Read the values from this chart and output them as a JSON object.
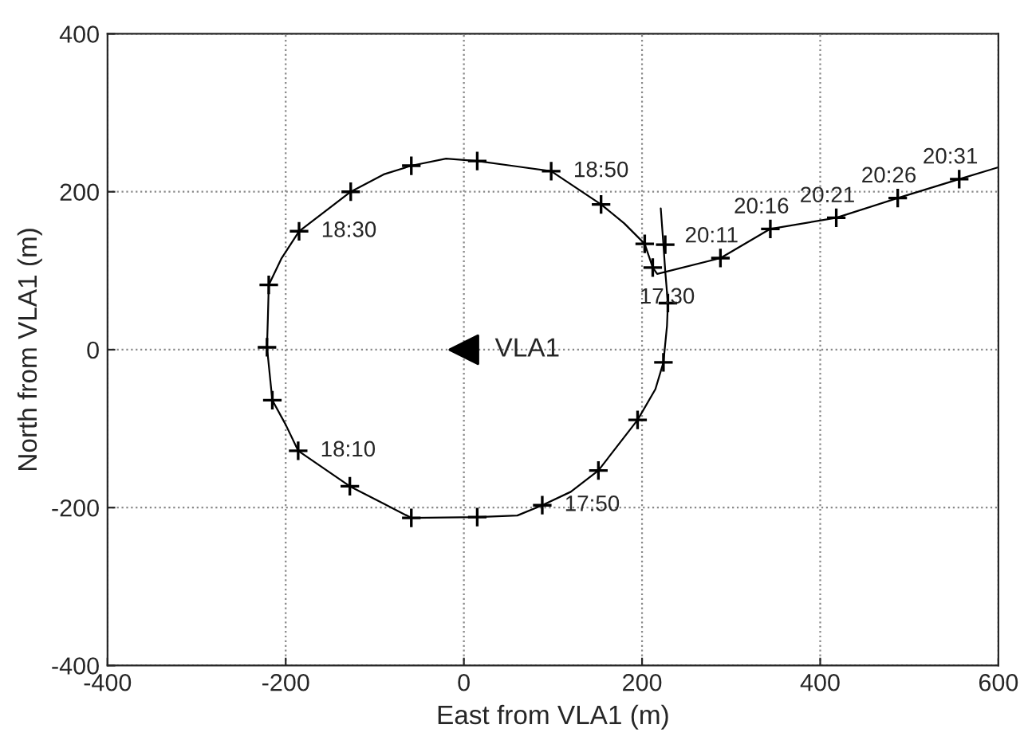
{
  "chart_data": {
    "type": "line",
    "xlabel": "East from VLA1 (m)",
    "ylabel": "North from VLA1 (m)",
    "xlim": [
      -400,
      600
    ],
    "ylim": [
      -400,
      400
    ],
    "xticks": [
      -400,
      -200,
      0,
      200,
      400,
      600
    ],
    "yticks": [
      -400,
      -200,
      0,
      200,
      400
    ],
    "grid": true,
    "series": [
      {
        "color": "#000000",
        "marker": "none",
        "x": [
          221,
          224,
          226,
          229,
          228,
          224,
          215,
          195,
          151,
          120,
          88,
          60,
          15,
          -59,
          -90,
          -128,
          -186,
          -200,
          -215,
          -221,
          -220,
          -219,
          -205,
          -185,
          -127,
          -90,
          -59,
          -20,
          15,
          60,
          98,
          154,
          180,
          203,
          212,
          217,
          288,
          344,
          418,
          487,
          556,
          600
        ],
        "values": [
          179,
          133,
          100,
          59,
          30,
          -16,
          -50,
          -89,
          -153,
          -180,
          -197,
          -210,
          -212,
          -213,
          -195,
          -173,
          -128,
          -95,
          -64,
          3,
          40,
          82,
          115,
          150,
          200,
          222,
          233,
          242,
          239,
          232,
          226,
          184,
          160,
          134,
          104,
          96,
          116,
          153,
          167,
          192,
          216,
          231
        ]
      },
      {
        "type": "scatter",
        "color": "#000000",
        "marker": "cross",
        "x": [
          229,
          224,
          195,
          151,
          88,
          15,
          -59,
          -128,
          -186,
          -215,
          -221,
          -219,
          -185,
          -127,
          -59,
          15,
          98,
          154,
          203,
          226,
          212,
          288,
          344,
          418,
          487,
          556
        ],
        "values": [
          59,
          -16,
          -89,
          -153,
          -197,
          -212,
          -213,
          -173,
          -128,
          -64,
          3,
          82,
          150,
          200,
          233,
          239,
          226,
          184,
          134,
          133,
          104,
          116,
          153,
          167,
          192,
          216
        ]
      },
      {
        "type": "scatter",
        "color": "#000000",
        "marker": "triangle",
        "x": [
          0
        ],
        "values": [
          0
        ]
      }
    ],
    "annotations": [
      {
        "text": "VLA1",
        "x": 0,
        "y": 0
      },
      {
        "text": "18:50",
        "x": 98,
        "y": 226
      },
      {
        "text": "18:30",
        "x": -185,
        "y": 150
      },
      {
        "text": "18:10",
        "x": -186,
        "y": -128
      },
      {
        "text": "17:50",
        "x": 88,
        "y": -197
      },
      {
        "text": "17:30",
        "x": 212,
        "y": 104
      },
      {
        "text": "20:11",
        "x": 288,
        "y": 116
      },
      {
        "text": "20:16",
        "x": 344,
        "y": 153
      },
      {
        "text": "20:21",
        "x": 418,
        "y": 167
      },
      {
        "text": "20:26",
        "x": 487,
        "y": 192
      },
      {
        "text": "20:31",
        "x": 556,
        "y": 216
      }
    ]
  }
}
